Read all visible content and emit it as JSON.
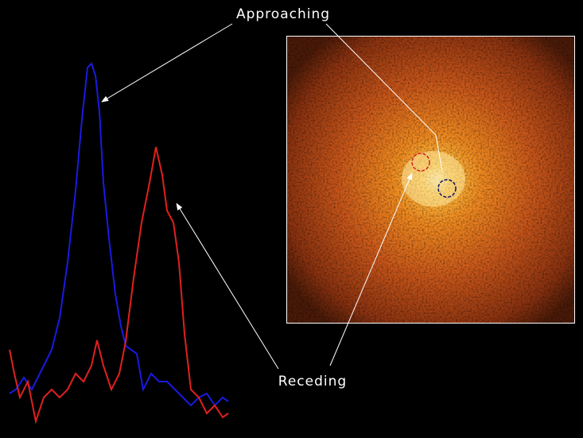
{
  "annotations": {
    "approaching": "Approaching",
    "receding": "Receding"
  }
}
